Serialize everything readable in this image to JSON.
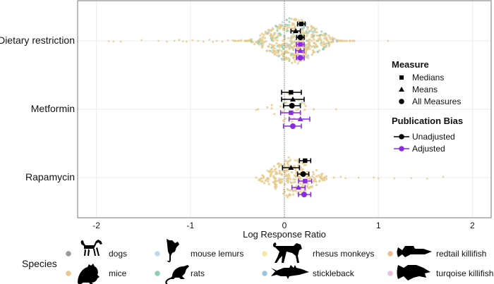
{
  "chart_data": {
    "type": "scatter",
    "subtype": "beeswarm-forest",
    "title": "",
    "xlabel": "Log Response Ratio",
    "ylabel": "",
    "xlim": [
      -2.2,
      2.2
    ],
    "x_ticks": [
      -2,
      -1,
      0,
      1,
      2
    ],
    "x_tick_labels": [
      "-2",
      "-1",
      "0",
      "1",
      "2"
    ],
    "reference_line_x": 0,
    "grid": true,
    "categories": [
      "Dietary restriction",
      "Metformin",
      "Rapamycin"
    ],
    "estimates": [
      {
        "category": "Dietary restriction",
        "rows": [
          {
            "measure": "Medians",
            "bias": "Unadjusted",
            "est": 0.18,
            "lo": 0.14,
            "hi": 0.22
          },
          {
            "measure": "Means",
            "bias": "Unadjusted",
            "est": 0.12,
            "lo": 0.07,
            "hi": 0.17
          },
          {
            "measure": "All Measures",
            "bias": "Unadjusted",
            "est": 0.17,
            "lo": 0.13,
            "hi": 0.21
          },
          {
            "measure": "Medians",
            "bias": "Adjusted",
            "est": 0.17,
            "lo": 0.13,
            "hi": 0.21
          },
          {
            "measure": "Means",
            "bias": "Adjusted",
            "est": 0.17,
            "lo": 0.12,
            "hi": 0.21
          },
          {
            "measure": "All Measures",
            "bias": "Adjusted",
            "est": 0.17,
            "lo": 0.13,
            "hi": 0.21
          }
        ]
      },
      {
        "category": "Metformin",
        "rows": [
          {
            "measure": "Medians",
            "bias": "Unadjusted",
            "est": 0.07,
            "lo": -0.03,
            "hi": 0.18
          },
          {
            "measure": "Means",
            "bias": "Unadjusted",
            "est": 0.09,
            "lo": -0.03,
            "hi": 0.21
          },
          {
            "measure": "All Measures",
            "bias": "Unadjusted",
            "est": 0.08,
            "lo": -0.01,
            "hi": 0.17
          },
          {
            "measure": "Medians",
            "bias": "Adjusted",
            "est": 0.07,
            "lo": -0.04,
            "hi": 0.17
          },
          {
            "measure": "Means",
            "bias": "Adjusted",
            "est": 0.17,
            "lo": 0.05,
            "hi": 0.27
          },
          {
            "measure": "All Measures",
            "bias": "Adjusted",
            "est": 0.09,
            "lo": -0.01,
            "hi": 0.18
          }
        ]
      },
      {
        "category": "Rapamycin",
        "rows": [
          {
            "measure": "Medians",
            "bias": "Unadjusted",
            "est": 0.22,
            "lo": 0.16,
            "hi": 0.28
          },
          {
            "measure": "Means",
            "bias": "Unadjusted",
            "est": 0.07,
            "lo": -0.02,
            "hi": 0.16
          },
          {
            "measure": "All Measures",
            "bias": "Unadjusted",
            "est": 0.2,
            "lo": 0.14,
            "hi": 0.26
          },
          {
            "measure": "Medians",
            "bias": "Adjusted",
            "est": 0.22,
            "lo": 0.15,
            "hi": 0.29
          },
          {
            "measure": "Means",
            "bias": "Adjusted",
            "est": 0.15,
            "lo": 0.08,
            "hi": 0.22
          },
          {
            "measure": "All Measures",
            "bias": "Adjusted",
            "est": 0.21,
            "lo": 0.15,
            "hi": 0.28
          }
        ]
      }
    ],
    "swarm": [
      {
        "category": "Dietary restriction",
        "n": 520,
        "range": [
          -1.9,
          1.1
        ],
        "center": 0.1,
        "spread": 0.22,
        "spread_height": 0.85,
        "species_mix": {
          "mice": 0.78,
          "rats": 0.18,
          "mouse lemurs": 0.02,
          "stickleback": 0.02
        },
        "tail_points": [
          -1.87,
          -1.82,
          -1.74,
          -1.52,
          -1.34,
          -1.25,
          -1.17,
          -1.12,
          -1.08,
          -1.04,
          -0.98,
          -0.92,
          -0.86,
          -0.8,
          -0.76,
          -0.72,
          -0.66,
          -0.6,
          -0.55,
          -0.5,
          -0.46,
          -0.42,
          -0.38,
          0.45,
          0.5,
          0.55,
          0.6,
          0.65,
          0.7,
          1.1
        ]
      },
      {
        "category": "Metformin",
        "n": 34,
        "range": [
          -0.3,
          0.55
        ],
        "center": 0.05,
        "spread": 0.12,
        "spread_height": 0.6,
        "species_mix": {
          "mice": 0.85,
          "rats": 0.1,
          "mouse lemurs": 0.05
        },
        "tail_points": [
          -0.3,
          0.55
        ]
      },
      {
        "category": "Rapamycin",
        "n": 260,
        "range": [
          -0.3,
          1.7
        ],
        "center": 0.08,
        "spread": 0.18,
        "spread_height": 0.75,
        "species_mix": {
          "mice": 1.0
        },
        "tail_points": [
          0.6,
          0.65,
          0.79,
          0.95,
          1.0,
          1.17,
          1.35,
          1.52,
          1.69
        ]
      }
    ],
    "legend": {
      "placement": "right",
      "measure": {
        "title": "Measure",
        "items": [
          {
            "label": "Medians",
            "shape": "square"
          },
          {
            "label": "Means",
            "shape": "triangle"
          },
          {
            "label": "All Measures",
            "shape": "circle"
          }
        ]
      },
      "publication_bias": {
        "title": "Publication Bias",
        "items": [
          {
            "label": "Unadjusted",
            "color": "#000000"
          },
          {
            "label": "Adjusted",
            "color": "#8a2be2"
          }
        ]
      },
      "species": {
        "title": "Species",
        "placement": "bottom",
        "items": [
          {
            "label": "dogs",
            "color": "#999999",
            "icon": "dog-icon"
          },
          {
            "label": "mice",
            "color": "#e6c98a",
            "icon": "mouse-icon"
          },
          {
            "label": "mouse lemurs",
            "color": "#bcd8ee",
            "icon": "mouse-lemur-icon"
          },
          {
            "label": "rats",
            "color": "#8fd0b5",
            "icon": "rat-icon"
          },
          {
            "label": "rhesus monkeys",
            "color": "#f2e9a6",
            "icon": "monkey-icon"
          },
          {
            "label": "stickleback",
            "color": "#9dc4df",
            "icon": "stickleback-icon"
          },
          {
            "label": "redtail killifish",
            "color": "#e9bd96",
            "icon": "redtail-killifish-icon"
          },
          {
            "label": "turqoise killifish",
            "color": "#e6c4de",
            "icon": "turquoise-killifish-icon"
          }
        ]
      }
    }
  },
  "colors": {
    "unadjusted": "#000000",
    "adjusted": "#8a2be2",
    "grid": "#ebebeb",
    "panel_border": "#8c8c8c"
  }
}
